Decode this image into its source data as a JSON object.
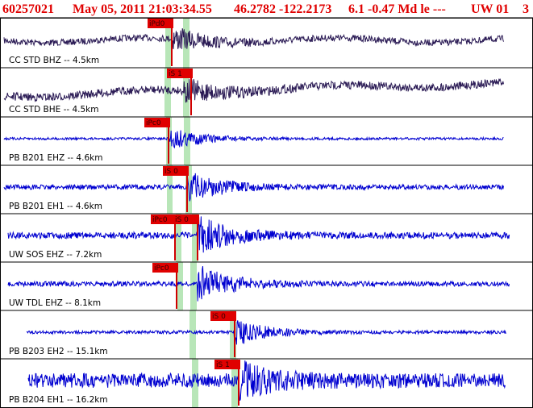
{
  "header": {
    "event_id": "60257021",
    "datetime": "May 05, 2011 21:03:34.55",
    "location": "46.2782 -122.2173",
    "magnitude": "6.1 -0.47 Md le ---",
    "network": "UW 01",
    "count": "3"
  },
  "traces": [
    {
      "label": "CC STD BHZ -- 4.5km",
      "picks": [
        "iPd0"
      ]
    },
    {
      "label": "CC STD BHE -- 4.5km",
      "picks": [
        "iS 1"
      ]
    },
    {
      "label": "PB B201 EHZ -- 4.6km",
      "picks": [
        "iPc0"
      ]
    },
    {
      "label": "PB B201 EH1 -- 4.6km",
      "picks": [
        "iS 0"
      ]
    },
    {
      "label": "UW SOS EHZ -- 7.2km",
      "picks": [
        "iPc0",
        "iS 0"
      ]
    },
    {
      "label": "UW TDL EHZ -- 8.1km",
      "picks": [
        "iPc0"
      ]
    },
    {
      "label": "PB B203 EH2 -- 15.1km",
      "picks": [
        "iS 0"
      ]
    },
    {
      "label": "PB B204 EH1 -- 16.2km",
      "picks": [
        "iS 1"
      ]
    }
  ]
}
